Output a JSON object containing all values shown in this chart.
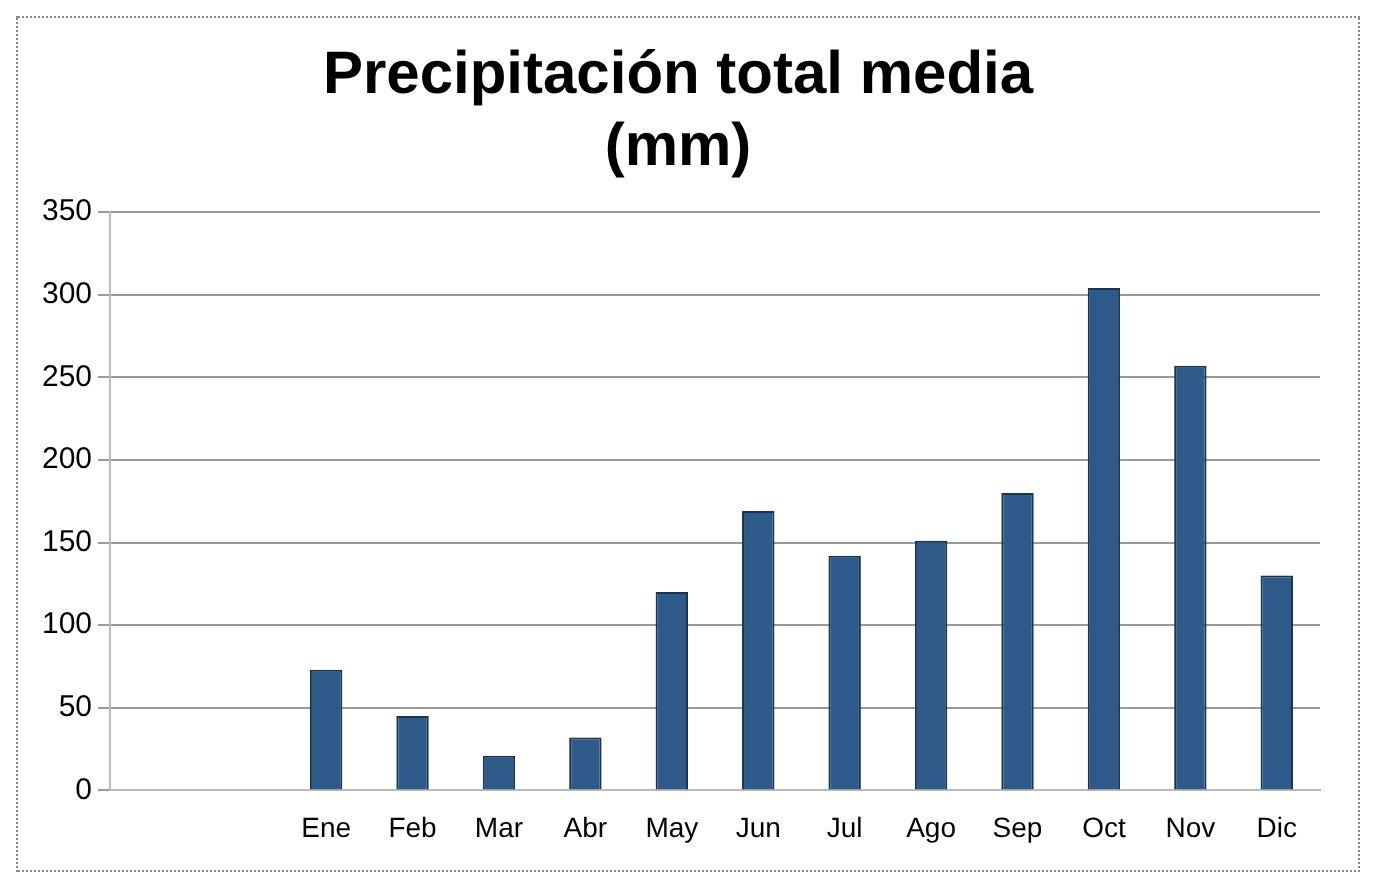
{
  "chart_data": {
    "type": "bar",
    "title": "Precipitación total media (mm)",
    "categories": [
      null,
      null,
      "Ene",
      "Feb",
      "Mar",
      "Abr",
      "May",
      "Jun",
      "Jul",
      "Ago",
      "Sep",
      "Oct",
      "Nov",
      "Dic"
    ],
    "values": [
      null,
      null,
      73,
      45,
      21,
      32,
      120,
      169,
      142,
      151,
      180,
      304,
      257,
      130
    ],
    "color": "#2e5a8a",
    "ylim": [
      0,
      350
    ],
    "yticks": [
      0,
      50,
      100,
      150,
      200,
      250,
      300,
      350
    ],
    "grid": "y",
    "legend": false
  }
}
